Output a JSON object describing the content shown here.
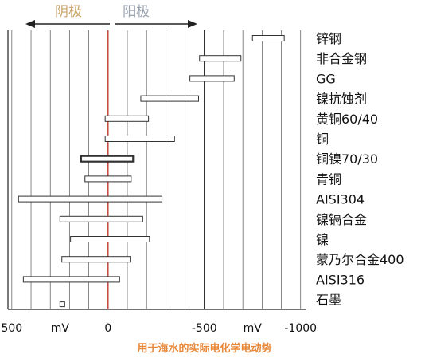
{
  "direction": {
    "cathode_label": "阴极",
    "anode_label": "阳极",
    "cathode_color": "#c9a46a",
    "anode_color": "#9aa3b0"
  },
  "caption": "用于海水的实际电化学电动势",
  "colors": {
    "zero_line": "#c0392b",
    "caption": "#e8893a",
    "grid": "#555555",
    "bar_fill": "#ffffff",
    "bar_stroke": "#333333"
  },
  "chart_data": {
    "type": "bar",
    "orientation": "horizontal-range",
    "x_unit": "mV",
    "xlim": [
      520,
      -1030
    ],
    "grid": true,
    "x_tick_labels": [
      {
        "value": 500,
        "text": "500"
      },
      {
        "value": 250,
        "text": "mV"
      },
      {
        "value": 0,
        "text": "0"
      },
      {
        "value": -500,
        "text": "-500"
      },
      {
        "value": -750,
        "text": "mV"
      },
      {
        "value": -1000,
        "text": "-1000"
      }
    ],
    "series": [
      {
        "label": "锌钢",
        "range": [
          -750,
          -915
        ],
        "highlight": false
      },
      {
        "label": "非合金钢",
        "range": [
          -475,
          -690
        ],
        "highlight": false
      },
      {
        "label": "GG",
        "range": [
          -425,
          -655
        ],
        "highlight": false
      },
      {
        "label": "镍抗蚀剂",
        "range": [
          -170,
          -470
        ],
        "highlight": false
      },
      {
        "label": "黄铜60/40",
        "range": [
          15,
          -210
        ],
        "highlight": false
      },
      {
        "label": "铜",
        "range": [
          15,
          -345
        ],
        "highlight": false
      },
      {
        "label": "铜镍70/30",
        "range": [
          140,
          -130
        ],
        "highlight": true
      },
      {
        "label": "青铜",
        "range": [
          120,
          -120
        ],
        "highlight": false
      },
      {
        "label": "AISI304",
        "range": [
          465,
          -280
        ],
        "highlight": false
      },
      {
        "label": "镍镉合金",
        "range": [
          250,
          -180
        ],
        "highlight": false
      },
      {
        "label": "镍",
        "range": [
          195,
          -215
        ],
        "highlight": false
      },
      {
        "label": "蒙乃尔合金400",
        "range": [
          240,
          -115
        ],
        "highlight": false
      },
      {
        "label": "AISI316",
        "range": [
          440,
          -60
        ],
        "highlight": false
      },
      {
        "label": "石墨",
        "range": [
          250,
          230
        ],
        "highlight": false
      }
    ]
  }
}
